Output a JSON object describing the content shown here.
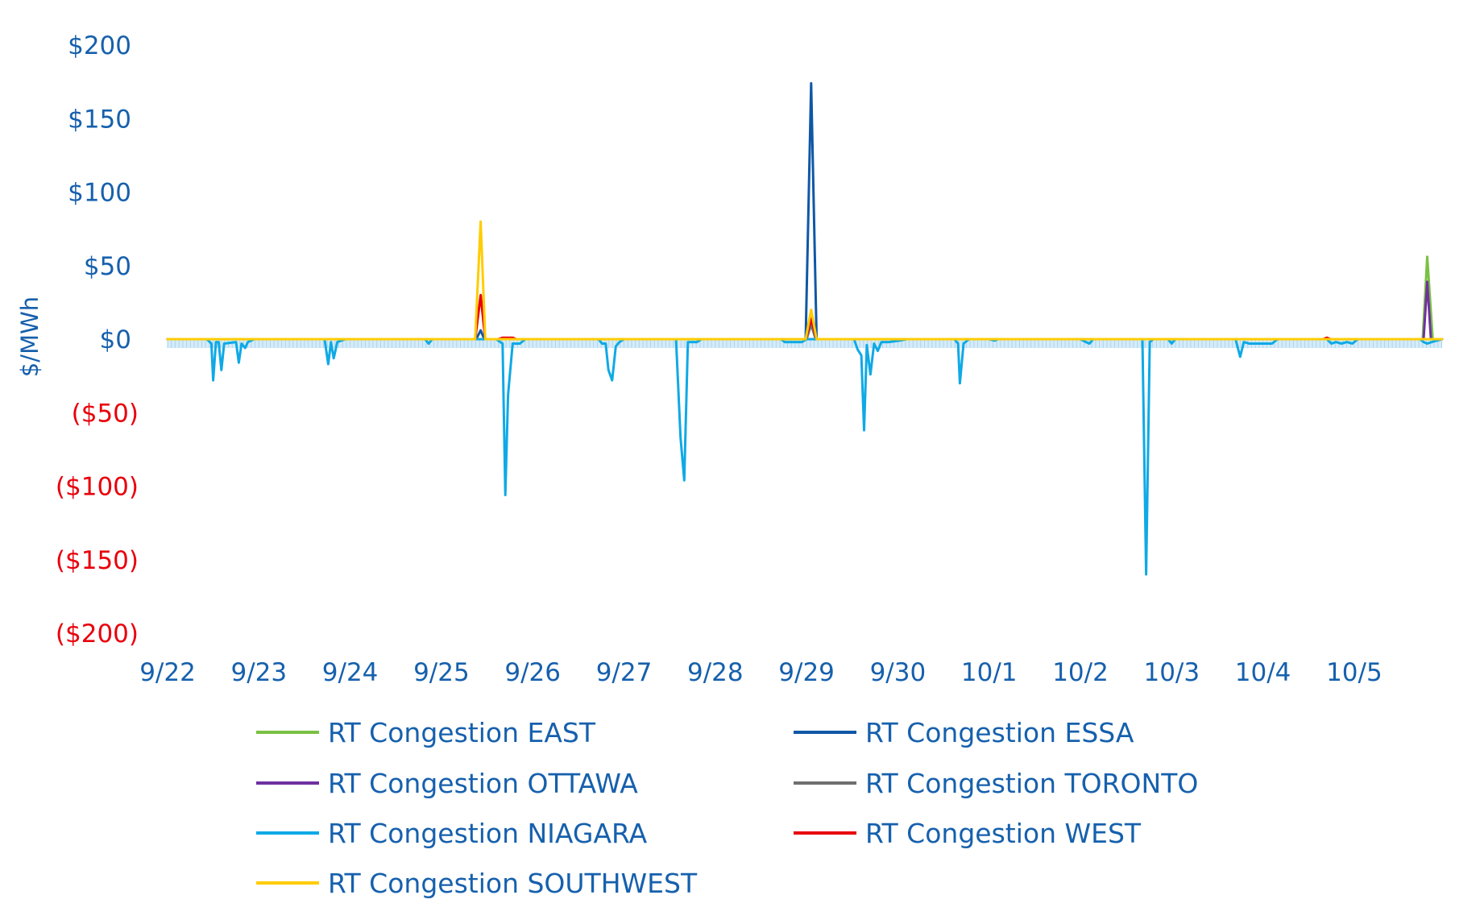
{
  "chart_data": {
    "type": "line",
    "title": "",
    "xlabel": "",
    "ylabel": "$/MWh",
    "ylim": [
      -200,
      200
    ],
    "y_ticks": [
      {
        "value": 200,
        "label": "$200",
        "color": "#1660ad"
      },
      {
        "value": 150,
        "label": "$150",
        "color": "#1660ad"
      },
      {
        "value": 100,
        "label": "$100",
        "color": "#1660ad"
      },
      {
        "value": 50,
        "label": "$50",
        "color": "#1660ad"
      },
      {
        "value": 0,
        "label": "$0",
        "color": "#1660ad"
      },
      {
        "value": -50,
        "label": "($50)",
        "color": "#e8000b"
      },
      {
        "value": -100,
        "label": "($100)",
        "color": "#e8000b"
      },
      {
        "value": -150,
        "label": "($150)",
        "color": "#e8000b"
      },
      {
        "value": -200,
        "label": "($200)",
        "color": "#e8000b"
      }
    ],
    "x_ticks": [
      "9/22",
      "9/23",
      "9/24",
      "9/25",
      "9/26",
      "9/27",
      "9/28",
      "9/29",
      "9/30",
      "10/1",
      "10/2",
      "10/3",
      "10/4",
      "10/5"
    ],
    "x_start": "9/22",
    "x_end": "10/5 23:00",
    "x_unit": "day",
    "grid": false,
    "legend_position": "bottom",
    "series": [
      {
        "name": "RT Congestion EAST",
        "color": "#7ac143",
        "points": [
          [
            0,
            0
          ],
          [
            13.75,
            0
          ],
          [
            13.8,
            56
          ],
          [
            13.86,
            0
          ],
          [
            13.96,
            0
          ]
        ]
      },
      {
        "name": "RT Congestion ESSA",
        "color": "#0f57a6",
        "points": [
          [
            0,
            0
          ],
          [
            3.38,
            0
          ],
          [
            3.43,
            6
          ],
          [
            3.47,
            0
          ],
          [
            6.99,
            0
          ],
          [
            7.05,
            174
          ],
          [
            7.11,
            0
          ],
          [
            13.96,
            0
          ]
        ]
      },
      {
        "name": "RT Congestion OTTAWA",
        "color": "#7030a0",
        "points": [
          [
            0,
            0
          ],
          [
            13.76,
            0
          ],
          [
            13.8,
            39
          ],
          [
            13.84,
            0
          ],
          [
            13.96,
            0
          ]
        ]
      },
      {
        "name": "RT Congestion TORONTO",
        "color": "#6f6f6f",
        "points": [
          [
            0,
            0
          ],
          [
            7.0,
            0
          ],
          [
            7.05,
            10
          ],
          [
            7.1,
            0
          ],
          [
            13.96,
            0
          ]
        ]
      },
      {
        "name": "RT Congestion NIAGARA",
        "color": "#0fa9e6",
        "points": [
          [
            0,
            0
          ],
          [
            0.43,
            0
          ],
          [
            0.48,
            -3
          ],
          [
            0.5,
            -28
          ],
          [
            0.53,
            -2
          ],
          [
            0.56,
            -2
          ],
          [
            0.59,
            -21
          ],
          [
            0.62,
            -3
          ],
          [
            0.75,
            -2
          ],
          [
            0.78,
            -16
          ],
          [
            0.81,
            -3
          ],
          [
            0.85,
            -6
          ],
          [
            0.88,
            -2
          ],
          [
            0.95,
            0
          ],
          [
            1.72,
            0
          ],
          [
            1.76,
            -17
          ],
          [
            1.79,
            -2
          ],
          [
            1.82,
            -13
          ],
          [
            1.86,
            -2
          ],
          [
            1.95,
            0
          ],
          [
            2.82,
            0
          ],
          [
            2.86,
            -3
          ],
          [
            2.9,
            0
          ],
          [
            3.6,
            0
          ],
          [
            3.67,
            -3
          ],
          [
            3.7,
            -106
          ],
          [
            3.73,
            -38
          ],
          [
            3.78,
            -3
          ],
          [
            3.86,
            -3
          ],
          [
            3.92,
            0
          ],
          [
            4.72,
            0
          ],
          [
            4.76,
            -3
          ],
          [
            4.8,
            -3
          ],
          [
            4.83,
            -21
          ],
          [
            4.87,
            -28
          ],
          [
            4.91,
            -5
          ],
          [
            4.95,
            -2
          ],
          [
            5.0,
            0
          ],
          [
            5.57,
            0
          ],
          [
            5.62,
            -67
          ],
          [
            5.66,
            -96
          ],
          [
            5.7,
            -2
          ],
          [
            5.8,
            -2
          ],
          [
            5.85,
            0
          ],
          [
            6.72,
            0
          ],
          [
            6.76,
            -2
          ],
          [
            6.95,
            -2
          ],
          [
            7.0,
            0
          ],
          [
            7.52,
            0
          ],
          [
            7.56,
            -7
          ],
          [
            7.6,
            -11
          ],
          [
            7.63,
            -62
          ],
          [
            7.66,
            -4
          ],
          [
            7.7,
            -24
          ],
          [
            7.74,
            -3
          ],
          [
            7.78,
            -8
          ],
          [
            7.82,
            -2
          ],
          [
            7.9,
            -2
          ],
          [
            8.02,
            -1
          ],
          [
            8.1,
            0
          ],
          [
            8.62,
            0
          ],
          [
            8.66,
            -3
          ],
          [
            8.68,
            -30
          ],
          [
            8.72,
            -3
          ],
          [
            8.78,
            0
          ],
          [
            9.0,
            0
          ],
          [
            9.06,
            -1
          ],
          [
            9.1,
            0
          ],
          [
            10.0,
            0
          ],
          [
            10.06,
            -2
          ],
          [
            10.1,
            -3
          ],
          [
            10.14,
            0
          ],
          [
            10.68,
            0
          ],
          [
            10.72,
            -160
          ],
          [
            10.76,
            -2
          ],
          [
            10.8,
            0
          ],
          [
            10.96,
            0
          ],
          [
            11.0,
            -3
          ],
          [
            11.04,
            0
          ],
          [
            11.7,
            0
          ],
          [
            11.75,
            -12
          ],
          [
            11.79,
            -2
          ],
          [
            11.85,
            -3
          ],
          [
            12.0,
            -3
          ],
          [
            12.1,
            -3
          ],
          [
            12.16,
            0
          ],
          [
            12.7,
            0
          ],
          [
            12.75,
            -3
          ],
          [
            12.8,
            -2
          ],
          [
            12.86,
            -3
          ],
          [
            12.92,
            -2
          ],
          [
            12.98,
            -3
          ],
          [
            13.04,
            0
          ],
          [
            13.72,
            0
          ],
          [
            13.76,
            -2
          ],
          [
            13.8,
            -3
          ],
          [
            13.85,
            -2
          ],
          [
            13.96,
            0
          ]
        ]
      },
      {
        "name": "RT Congestion WEST",
        "color": "#e8000b",
        "points": [
          [
            0,
            0
          ],
          [
            3.37,
            0
          ],
          [
            3.43,
            30
          ],
          [
            3.48,
            0
          ],
          [
            3.62,
            0
          ],
          [
            3.67,
            1
          ],
          [
            3.78,
            1
          ],
          [
            3.82,
            0
          ],
          [
            6.99,
            0
          ],
          [
            7.05,
            14
          ],
          [
            7.11,
            0
          ],
          [
            12.66,
            0
          ],
          [
            12.7,
            1
          ],
          [
            12.74,
            0
          ],
          [
            13.96,
            0
          ]
        ]
      },
      {
        "name": "RT Congestion SOUTHWEST",
        "color": "#ffcc00",
        "points": [
          [
            0,
            0
          ],
          [
            3.37,
            0
          ],
          [
            3.43,
            80
          ],
          [
            3.48,
            0
          ],
          [
            6.99,
            0
          ],
          [
            7.05,
            20
          ],
          [
            7.11,
            0
          ],
          [
            13.96,
            0
          ]
        ]
      }
    ]
  }
}
